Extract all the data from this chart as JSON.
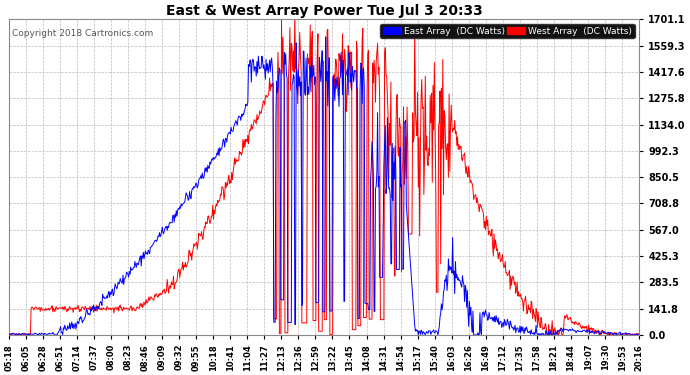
{
  "title": "East & West Array Power Tue Jul 3 20:33",
  "copyright": "Copyright 2018 Cartronics.com",
  "legend_east": "East Array  (DC Watts)",
  "legend_west": "West Array  (DC Watts)",
  "east_color": "#0000ff",
  "west_color": "#ff0000",
  "background_color": "#ffffff",
  "plot_bg_color": "#ffffff",
  "grid_color": "#bbbbbb",
  "ymin": 0.0,
  "ymax": 1701.1,
  "yticks": [
    0.0,
    141.8,
    283.5,
    425.3,
    567.0,
    708.8,
    850.5,
    992.3,
    1134.0,
    1275.8,
    1417.6,
    1559.3,
    1701.1
  ],
  "x_labels": [
    "05:18",
    "06:05",
    "06:28",
    "06:51",
    "07:14",
    "07:37",
    "08:00",
    "08:23",
    "08:46",
    "09:09",
    "09:32",
    "09:55",
    "10:18",
    "10:41",
    "11:04",
    "11:27",
    "12:13",
    "12:36",
    "12:59",
    "13:22",
    "13:45",
    "14:08",
    "14:31",
    "14:54",
    "15:17",
    "15:40",
    "16:03",
    "16:26",
    "16:49",
    "17:12",
    "17:35",
    "17:58",
    "18:21",
    "18:44",
    "19:07",
    "19:30",
    "19:53",
    "20:16"
  ],
  "figsize": [
    6.9,
    3.75
  ],
  "dpi": 100,
  "linewidth": 0.7
}
